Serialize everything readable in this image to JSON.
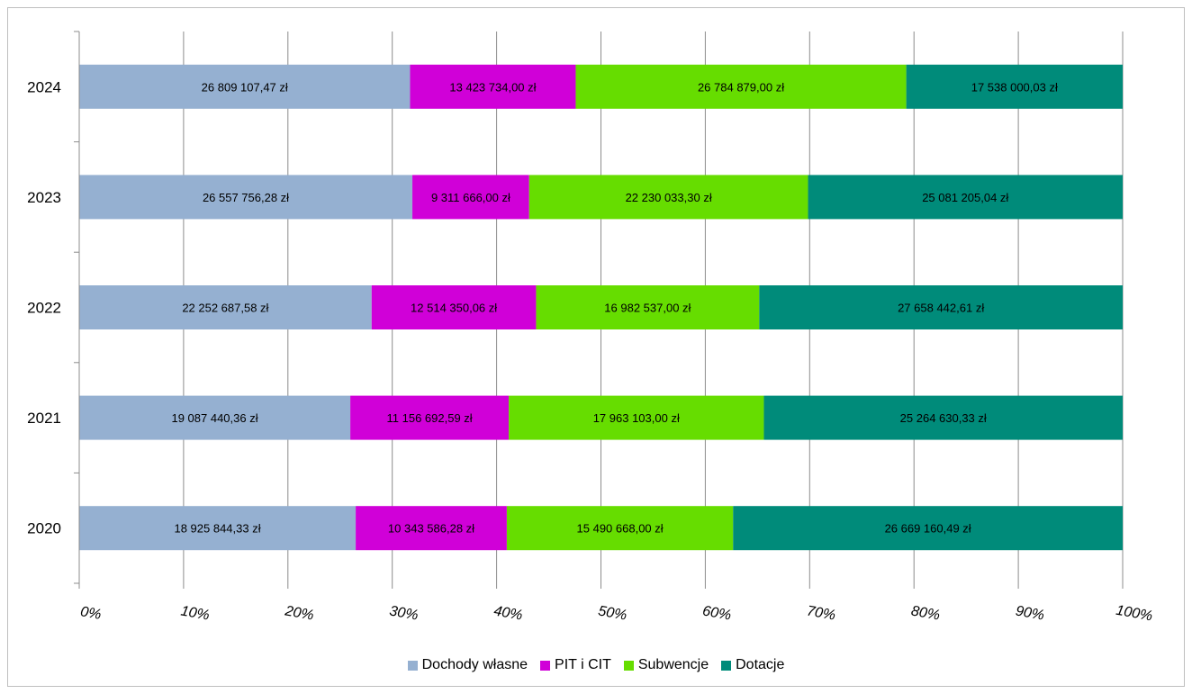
{
  "chart_data": {
    "type": "bar",
    "orientation": "horizontal",
    "stacked": "percent",
    "categories": [
      "2024",
      "2023",
      "2022",
      "2021",
      "2020"
    ],
    "series": [
      {
        "name": "Dochody własne",
        "color": "#95b0d1",
        "values": [
          26809107.47,
          26557756.28,
          22252687.58,
          19087440.36,
          18925844.33
        ],
        "labels": [
          "26 809 107,47 zł",
          "26 557 756,28 zł",
          "22 252 687,58 zł",
          "19 087 440,36 zł",
          "18 925 844,33 zł"
        ]
      },
      {
        "name": "PIT i CIT",
        "color": "#d000d8",
        "values": [
          13423734.0,
          9311666.0,
          12514350.06,
          11156692.59,
          10343586.28
        ],
        "labels": [
          "13 423 734,00 zł",
          "9 311 666,00 zł",
          "12 514 350,06 zł",
          "11 156 692,59 zł",
          "10 343 586,28 zł"
        ]
      },
      {
        "name": "Subwencje",
        "color": "#66dd00",
        "values": [
          26784879.0,
          22230033.3,
          16982537.0,
          17963103.0,
          15490668.0
        ],
        "labels": [
          "26 784 879,00 zł",
          "22 230 033,30 zł",
          "16 982 537,00 zł",
          "17 963 103,00 zł",
          "15 490 668,00 zł"
        ]
      },
      {
        "name": "Dotacje",
        "color": "#008b7a",
        "values": [
          17538000.03,
          25081205.04,
          27658442.61,
          25264630.33,
          26669160.49
        ],
        "labels": [
          "17 538 000,03 zł",
          "25 081 205,04 zł",
          "27 658 442,61 zł",
          "25 264 630,33 zł",
          "26 669 160,49 zł"
        ]
      }
    ],
    "x_ticks": [
      "0%",
      "10%",
      "20%",
      "30%",
      "40%",
      "50%",
      "60%",
      "70%",
      "80%",
      "90%",
      "100%"
    ],
    "xlim": [
      0,
      100
    ],
    "grid": true,
    "legend_position": "bottom"
  }
}
